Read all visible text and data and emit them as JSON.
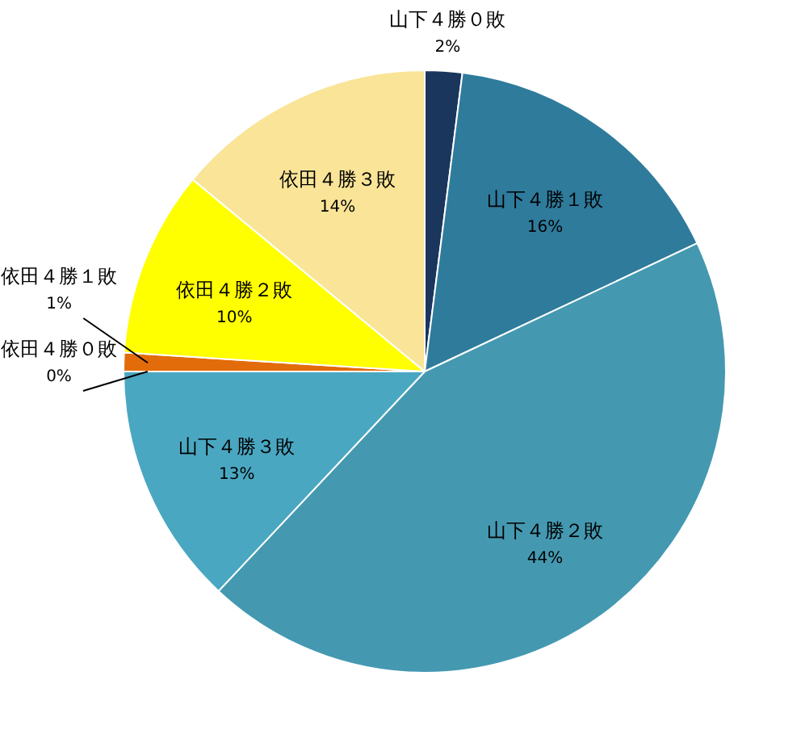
{
  "chart_data": {
    "type": "pie",
    "categories": [
      "山下４勝０敗",
      "山下４勝１敗",
      "山下４勝２敗",
      "山下４勝３敗",
      "依田４勝０敗",
      "依田４勝１敗",
      "依田４勝２敗",
      "依田４勝３敗"
    ],
    "values": [
      2,
      16,
      44,
      13,
      0,
      1,
      10,
      14
    ],
    "colors": [
      "#1b365d",
      "#2f7b9b",
      "#4499b1",
      "#4aa7c1",
      "#ff0000",
      "#e36c0a",
      "#ffff00",
      "#f9e497"
    ],
    "value_labels": [
      "2%",
      "16%",
      "44%",
      "13%",
      "0%",
      "1%",
      "10%",
      "14%"
    ],
    "legend": false
  }
}
